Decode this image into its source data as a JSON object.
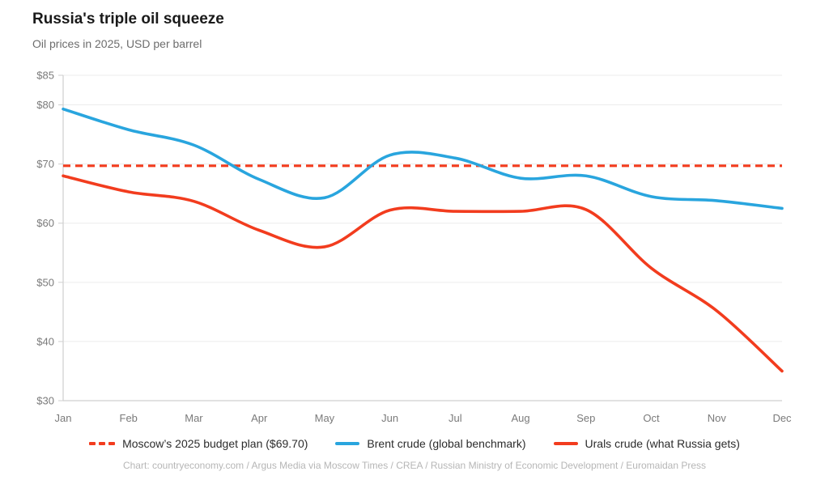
{
  "header": {
    "title": "Russia's triple oil squeeze",
    "subtitle": "Oil prices in 2025, USD per barrel"
  },
  "legend": {
    "items": [
      {
        "label": "Moscow’s 2025 budget plan ($69.70)",
        "marker": "dashed",
        "color": "#f23c1e"
      },
      {
        "label": "Brent crude (global benchmark)",
        "marker": "line",
        "color": "#29a5de"
      },
      {
        "label": "Urals crude (what Russia gets)",
        "marker": "line",
        "color": "#f23c1e"
      }
    ]
  },
  "footer": {
    "credit": "Chart: countryeconomy.com / Argus Media via Moscow Times / CREA / Russian Ministry of Economic Development / Euromaidan Press"
  },
  "chart_data": {
    "type": "line",
    "x": [
      "Jan",
      "Feb",
      "Mar",
      "Apr",
      "May",
      "Jun",
      "Jul",
      "Aug",
      "Sep",
      "Oct",
      "Nov",
      "Dec"
    ],
    "series": [
      {
        "name": "Moscow's 2025 budget plan",
        "style": "dashed",
        "color": "#f23c1e",
        "constant": 69.7
      },
      {
        "name": "Brent crude (global benchmark)",
        "style": "solid",
        "color": "#29a5de",
        "values": [
          79.3,
          75.8,
          73.2,
          67.4,
          64.3,
          71.5,
          71.0,
          67.6,
          68.0,
          64.5,
          63.8,
          62.5
        ]
      },
      {
        "name": "Urals crude (what Russia gets)",
        "style": "solid",
        "color": "#f23c1e",
        "values": [
          68.0,
          65.3,
          63.7,
          58.8,
          56.0,
          62.2,
          62.0,
          62.0,
          62.3,
          52.4,
          45.2,
          35.0
        ]
      }
    ],
    "title": "Russia's triple oil squeeze",
    "subtitle": "Oil prices in 2025, USD per barrel",
    "xlabel": "",
    "ylabel": "",
    "ylim": [
      30,
      85
    ],
    "yticks": [
      85,
      80,
      70,
      60,
      50,
      40,
      30
    ],
    "ytick_prefix": "$",
    "grid": true,
    "legend_position": "bottom",
    "axis_color": "#cfcfcf",
    "grid_color": "#ececec",
    "tick_label_color": "#7a7a7a"
  }
}
